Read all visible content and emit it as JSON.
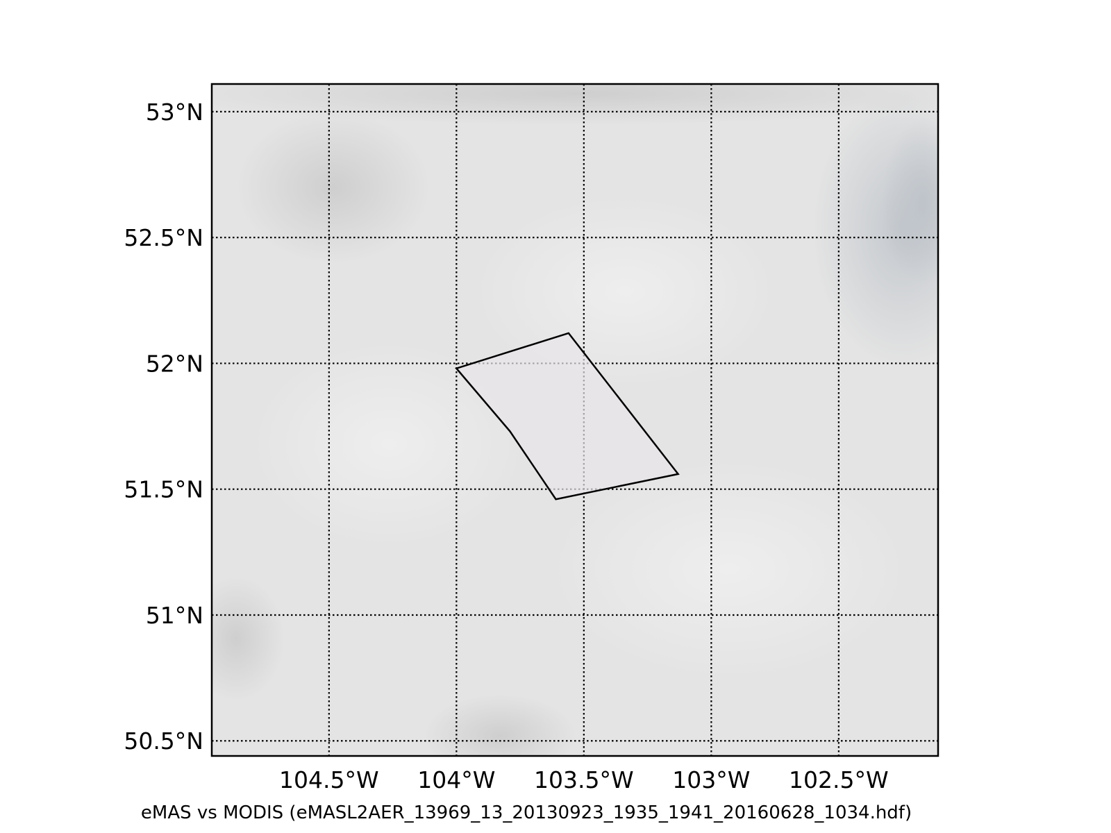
{
  "map": {
    "type": "map",
    "projection": "lat-lon",
    "grid": true,
    "background_color": "#e4e4e4",
    "outline_color": "#000000",
    "lon_range": [
      -104.96,
      -102.11
    ],
    "lat_range": [
      50.44,
      53.11
    ],
    "parallels": [
      {
        "lat": 53.0,
        "label": "53°N"
      },
      {
        "lat": 52.5,
        "label": "52.5°N"
      },
      {
        "lat": 52.0,
        "label": "52°N"
      },
      {
        "lat": 51.5,
        "label": "51.5°N"
      },
      {
        "lat": 51.0,
        "label": "51°N"
      },
      {
        "lat": 50.5,
        "label": "50.5°N"
      }
    ],
    "meridians": [
      {
        "lon": -104.5,
        "label": "104.5°W"
      },
      {
        "lon": -104.0,
        "label": "104°W"
      },
      {
        "lon": -103.5,
        "label": "103.5°W"
      },
      {
        "lon": -103.0,
        "label": "103°W"
      },
      {
        "lon": -102.5,
        "label": "102.5°W"
      }
    ],
    "swath_outline": [
      {
        "lon": -103.56,
        "lat": 52.12
      },
      {
        "lon": -103.13,
        "lat": 51.56
      },
      {
        "lon": -103.61,
        "lat": 51.46
      },
      {
        "lon": -103.79,
        "lat": 51.73
      },
      {
        "lon": -104.0,
        "lat": 51.98
      }
    ]
  },
  "caption": "eMAS vs MODIS (eMASL2AER_13969_13_20130923_1935_1941_20160628_1034.hdf)"
}
